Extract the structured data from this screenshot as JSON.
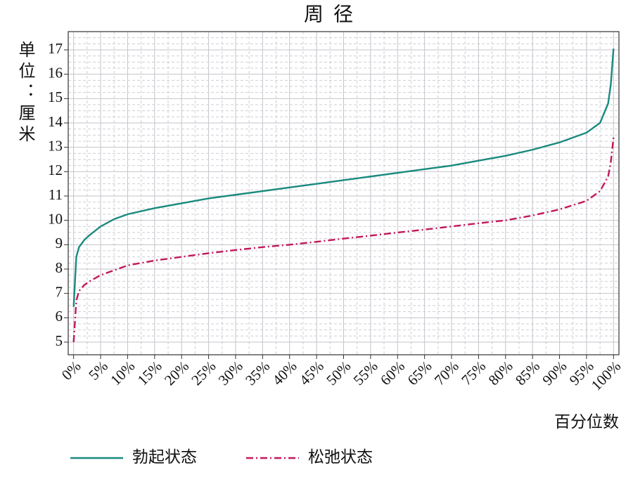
{
  "chart_data": {
    "type": "line",
    "title": "周径",
    "y_label": "单位：厘米",
    "x_label": "百分位数",
    "x": [
      0,
      0.5,
      1,
      2,
      3,
      5,
      7.5,
      10,
      15,
      20,
      25,
      30,
      35,
      40,
      45,
      50,
      55,
      60,
      65,
      70,
      75,
      80,
      85,
      90,
      95,
      97.5,
      99,
      99.5,
      100
    ],
    "series": [
      {
        "name": "勃起状态",
        "color": "#1a8a7e",
        "dash": "solid",
        "values": [
          6.45,
          8.5,
          8.9,
          9.2,
          9.4,
          9.75,
          10.05,
          10.25,
          10.5,
          10.7,
          10.9,
          11.05,
          11.2,
          11.35,
          11.5,
          11.65,
          11.8,
          11.95,
          12.1,
          12.25,
          12.45,
          12.65,
          12.9,
          13.2,
          13.6,
          14.0,
          14.8,
          15.6,
          17.05
        ]
      },
      {
        "name": "松弛状态",
        "color": "#c0185a",
        "dash": "dashdot",
        "values": [
          5.0,
          6.7,
          7.1,
          7.35,
          7.5,
          7.75,
          7.95,
          8.15,
          8.35,
          8.5,
          8.65,
          8.78,
          8.9,
          9.0,
          9.12,
          9.25,
          9.37,
          9.5,
          9.62,
          9.75,
          9.88,
          10.0,
          10.2,
          10.45,
          10.8,
          11.2,
          11.8,
          12.4,
          13.4
        ]
      }
    ],
    "xlim": [
      -1,
      101
    ],
    "ylim": [
      4.48,
      17.75
    ],
    "xticks": [
      {
        "value": 0,
        "label": "0%"
      },
      {
        "value": 5,
        "label": "5%"
      },
      {
        "value": 10,
        "label": "10%"
      },
      {
        "value": 15,
        "label": "15%"
      },
      {
        "value": 20,
        "label": "20%"
      },
      {
        "value": 25,
        "label": "25%"
      },
      {
        "value": 30,
        "label": "30%"
      },
      {
        "value": 35,
        "label": "35%"
      },
      {
        "value": 40,
        "label": "40%"
      },
      {
        "value": 45,
        "label": "45%"
      },
      {
        "value": 50,
        "label": "50%"
      },
      {
        "value": 55,
        "label": "55%"
      },
      {
        "value": 60,
        "label": "60%"
      },
      {
        "value": 65,
        "label": "65%"
      },
      {
        "value": 70,
        "label": "70%"
      },
      {
        "value": 75,
        "label": "75%"
      },
      {
        "value": 80,
        "label": "80%"
      },
      {
        "value": 85,
        "label": "85%"
      },
      {
        "value": 90,
        "label": "90%"
      },
      {
        "value": 95,
        "label": "95%"
      },
      {
        "value": 100,
        "label": "100%"
      }
    ],
    "yticks": [
      5,
      6,
      7,
      8,
      9,
      10,
      11,
      12,
      13,
      14,
      15,
      16,
      17
    ],
    "grid": true,
    "minor_grid": true,
    "legend": "bottom"
  }
}
